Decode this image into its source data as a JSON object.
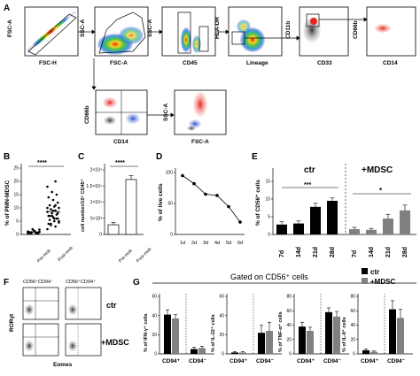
{
  "panels": {
    "A": {
      "label": "A",
      "plots": [
        {
          "x": "FSC-H",
          "y": "FSC-A"
        },
        {
          "x": "FSC-A",
          "y": "SSC-A"
        },
        {
          "x": "CD45",
          "y": "SSC-A"
        },
        {
          "x": "Lineage",
          "y": "HLA-DR"
        },
        {
          "x": "CD33",
          "y": "CD11b"
        },
        {
          "x": "CD14",
          "y": "CD66b"
        },
        {
          "x": "CD14",
          "y": "CD66b"
        },
        {
          "x": "FSC-A",
          "y": "SSC-A"
        }
      ]
    },
    "B": {
      "label": "B",
      "ylabel": "% of PMN-MDSC",
      "sig": "****",
      "yticks": [
        "0",
        "5",
        "10",
        "15",
        "20",
        "25"
      ]
    },
    "C": {
      "label": "C",
      "ylabel": "cell number/10⁵ CD45⁺",
      "sig": "****",
      "yticks": [
        "0",
        "5×10³",
        "1×10⁴",
        "1.5×10⁴",
        "2×10⁴"
      ]
    },
    "D": {
      "label": "D",
      "ylabel": "% of live cells",
      "yticks": [
        "0",
        "50",
        "100"
      ]
    },
    "E": {
      "label": "E",
      "ylabel": "% of CD56⁺ cells",
      "group1": "ctr",
      "group2": "+MDSC",
      "sig1": "***",
      "sig2": "*",
      "yticks": [
        "0",
        "5",
        "10",
        "15"
      ]
    },
    "F": {
      "label": "F",
      "col1": "CD56⁺CD94⁻",
      "col2": "CD56⁺CD94⁺",
      "row1": "ctr",
      "row2": "+MDSC",
      "ylabel": "RORγt",
      "xlabel": "Eomes"
    },
    "G": {
      "label": "G",
      "title": "Gated on CD56⁺ cells",
      "legend_ctr": "ctr",
      "legend_mdsc": "+MDSC",
      "sub": [
        {
          "ylabel": "% of IFN-γ⁺ cells",
          "yticks": [
            "0",
            "20",
            "40",
            "60"
          ]
        },
        {
          "ylabel": "% of IL-22⁺ cells",
          "yticks": [
            "0",
            "20",
            "40",
            "60"
          ]
        },
        {
          "ylabel": "% of TNF-α⁺ cells",
          "yticks": [
            "0",
            "20",
            "40",
            "60",
            "80"
          ]
        },
        {
          "ylabel": "% of IL-8⁺ cells",
          "yticks": [
            "0",
            "20",
            "40",
            "60",
            "80"
          ]
        }
      ],
      "xcats": [
        "CD94⁺",
        "CD94⁻"
      ]
    }
  },
  "chart_data": [
    {
      "type": "scatter",
      "panel": "B",
      "categories": [
        "Pre-mob",
        "Post-mob"
      ],
      "ylabel": "% of PMN-MDSC",
      "ylim": [
        0,
        25
      ],
      "series": [
        {
          "name": "Pre-mob",
          "values": [
            0.3,
            0.5,
            0.8,
            1.0,
            1.2,
            0.6,
            0.4,
            1.5,
            0.9,
            0.7,
            2.0,
            1.1,
            0.5,
            0.3,
            1.8
          ]
        },
        {
          "name": "Post-mob",
          "values": [
            2,
            3,
            4,
            4.5,
            5,
            5.5,
            6,
            6.5,
            7,
            7.5,
            8,
            8.5,
            9,
            9.5,
            10,
            10.5,
            11,
            12,
            13,
            14,
            15,
            16,
            18,
            20,
            3.5,
            5,
            6,
            7,
            8,
            9,
            4,
            6,
            7,
            10,
            11
          ]
        }
      ],
      "sig": "****"
    },
    {
      "type": "bar",
      "panel": "C",
      "categories": [
        "Pre-mob",
        "Post-mob"
      ],
      "values": [
        3000,
        17000
      ],
      "errors": [
        700,
        1200
      ],
      "ylim": [
        0,
        20000
      ],
      "sig": "****"
    },
    {
      "type": "line",
      "panel": "D",
      "x": [
        "1d",
        "2d",
        "3d",
        "4d",
        "5d",
        "6d"
      ],
      "values": [
        95,
        82,
        65,
        63,
        45,
        20
      ],
      "ylim": [
        0,
        100
      ],
      "ylabel": "% of live cells"
    },
    {
      "type": "bar",
      "panel": "E",
      "categories": [
        "7d",
        "14d",
        "21d",
        "28d",
        "7d",
        "14d",
        "21d",
        "28d"
      ],
      "groups": [
        "ctr",
        "ctr",
        "ctr",
        "ctr",
        "+MDSC",
        "+MDSC",
        "+MDSC",
        "+MDSC"
      ],
      "values": [
        2.8,
        3.1,
        7.8,
        9.5,
        1.5,
        1.3,
        4.5,
        6.8
      ],
      "errors": [
        0.8,
        0.7,
        1.0,
        0.8,
        0.5,
        0.4,
        1.2,
        1.5
      ],
      "colors": [
        "#000000",
        "#000000",
        "#000000",
        "#000000",
        "#808080",
        "#808080",
        "#808080",
        "#808080"
      ],
      "ylim": [
        0,
        15
      ]
    },
    {
      "type": "bar",
      "panel": "G",
      "categories": [
        "CD94⁺",
        "CD94⁻"
      ],
      "series": [
        {
          "name": "ctr",
          "subplot": "IFN-γ",
          "values": [
            41,
            5
          ],
          "errors": [
            5,
            2
          ]
        },
        {
          "name": "+MDSC",
          "subplot": "IFN-γ",
          "values": [
            37,
            6
          ],
          "errors": [
            4,
            2
          ]
        },
        {
          "name": "ctr",
          "subplot": "IL-22",
          "values": [
            1.5,
            22
          ],
          "errors": [
            1,
            8
          ]
        },
        {
          "name": "+MDSC",
          "subplot": "IL-22",
          "values": [
            1.5,
            24
          ],
          "errors": [
            1,
            9
          ]
        },
        {
          "name": "ctr",
          "subplot": "TNF-α",
          "values": [
            38,
            58
          ],
          "errors": [
            6,
            6
          ]
        },
        {
          "name": "+MDSC",
          "subplot": "TNF-α",
          "values": [
            32,
            52
          ],
          "errors": [
            5,
            7
          ]
        },
        {
          "name": "ctr",
          "subplot": "IL-8",
          "values": [
            5,
            62
          ],
          "errors": [
            2,
            12
          ]
        },
        {
          "name": "+MDSC",
          "subplot": "IL-8",
          "values": [
            3,
            50
          ],
          "errors": [
            1,
            12
          ]
        }
      ]
    }
  ]
}
